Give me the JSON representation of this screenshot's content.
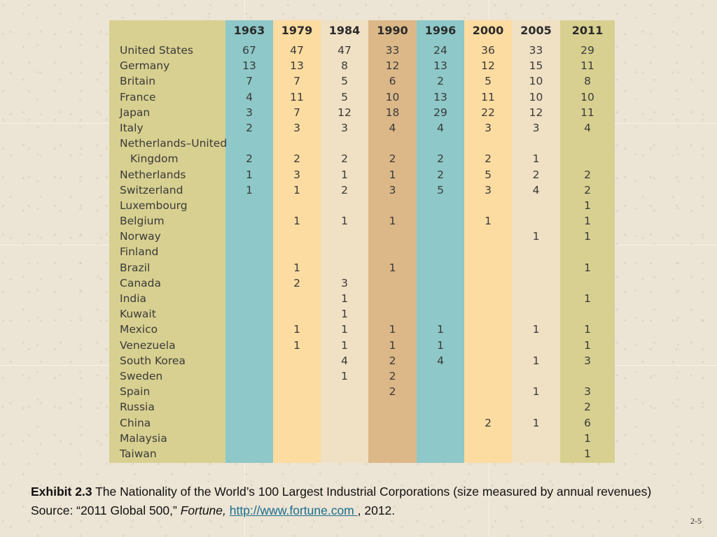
{
  "table": {
    "corner_label": "",
    "years": [
      "1963",
      "1979",
      "1984",
      "1990",
      "1996",
      "2000",
      "2005",
      "2011"
    ],
    "column_colors": [
      "#8ec8c8",
      "#fcdca0",
      "#f0e0c4",
      "#dcb888",
      "#8ec8c8",
      "#fcdca0",
      "#f0e0c4",
      "#d8d090"
    ],
    "label_column_color": "#d8d090",
    "rows": [
      {
        "country": "United States",
        "values": [
          "67",
          "47",
          "47",
          "33",
          "24",
          "36",
          "33",
          "29"
        ]
      },
      {
        "country": "Germany",
        "values": [
          "13",
          "13",
          "8",
          "12",
          "13",
          "12",
          "15",
          "11"
        ]
      },
      {
        "country": "Britain",
        "values": [
          "7",
          "7",
          "5",
          "6",
          "2",
          "5",
          "10",
          "8"
        ]
      },
      {
        "country": "France",
        "values": [
          "4",
          "11",
          "5",
          "10",
          "13",
          "11",
          "10",
          "10"
        ]
      },
      {
        "country": "Japan",
        "values": [
          "3",
          "7",
          "12",
          "18",
          "29",
          "22",
          "12",
          "11"
        ]
      },
      {
        "country": "Italy",
        "values": [
          "2",
          "3",
          "3",
          "4",
          "4",
          "3",
          "3",
          "4"
        ]
      },
      {
        "country": "Netherlands–United",
        "values": [
          "",
          "",
          "",
          "",
          "",
          "",
          "",
          ""
        ]
      },
      {
        "country": "Kingdom",
        "indent": true,
        "values": [
          "2",
          "2",
          "2",
          "2",
          "2",
          "2",
          "1",
          ""
        ]
      },
      {
        "country": "Netherlands",
        "values": [
          "1",
          "3",
          "1",
          "1",
          "2",
          "5",
          "2",
          "2"
        ]
      },
      {
        "country": "Switzerland",
        "values": [
          "1",
          "1",
          "2",
          "3",
          "5",
          "3",
          "4",
          "2"
        ]
      },
      {
        "country": "Luxembourg",
        "values": [
          "",
          "",
          "",
          "",
          "",
          "",
          "",
          "1"
        ]
      },
      {
        "country": "Belgium",
        "values": [
          "",
          "1",
          "1",
          "1",
          "",
          "1",
          "",
          "1"
        ]
      },
      {
        "country": "Norway",
        "values": [
          "",
          "",
          "",
          "",
          "",
          "",
          "1",
          "1"
        ]
      },
      {
        "country": "Finland",
        "values": [
          "",
          "",
          "",
          "",
          "",
          "",
          "",
          ""
        ]
      },
      {
        "country": "Brazil",
        "values": [
          "",
          "1",
          "",
          "1",
          "",
          "",
          "",
          "1"
        ]
      },
      {
        "country": "Canada",
        "values": [
          "",
          "2",
          "3",
          "",
          "",
          "",
          "",
          ""
        ]
      },
      {
        "country": "India",
        "values": [
          "",
          "",
          "1",
          "",
          "",
          "",
          "",
          "1"
        ]
      },
      {
        "country": "Kuwait",
        "values": [
          "",
          "",
          "1",
          "",
          "",
          "",
          "",
          ""
        ]
      },
      {
        "country": "Mexico",
        "values": [
          "",
          "1",
          "1",
          "1",
          "1",
          "",
          "1",
          "1"
        ]
      },
      {
        "country": "Venezuela",
        "values": [
          "",
          "1",
          "1",
          "1",
          "1",
          "",
          "",
          "1"
        ]
      },
      {
        "country": "South Korea",
        "values": [
          "",
          "",
          "4",
          "2",
          "4",
          "",
          "1",
          "3"
        ]
      },
      {
        "country": "Sweden",
        "values": [
          "",
          "",
          "1",
          "2",
          "",
          "",
          "",
          ""
        ]
      },
      {
        "country": "Spain",
        "values": [
          "",
          "",
          "",
          "2",
          "",
          "",
          "1",
          "3"
        ]
      },
      {
        "country": "Russia",
        "values": [
          "",
          "",
          "",
          "",
          "",
          "",
          "",
          "2"
        ]
      },
      {
        "country": "China",
        "values": [
          "",
          "",
          "",
          "",
          "",
          "2",
          "1",
          "6"
        ]
      },
      {
        "country": "Malaysia",
        "values": [
          "",
          "",
          "",
          "",
          "",
          "",
          "",
          "1"
        ]
      },
      {
        "country": "Taiwan",
        "values": [
          "",
          "",
          "",
          "",
          "",
          "",
          "",
          "1"
        ]
      }
    ]
  },
  "caption": {
    "label": "Exhibit 2.3",
    "text": " The Nationality of the World’s 100 Largest Industrial Corporations (size measured by annual revenues) Source: “2011 Global 500,” ",
    "italic": "Fortune,",
    "link_text": "http://www.fortune.com ",
    "suffix": ", 2012."
  },
  "slide_number": "2-5"
}
